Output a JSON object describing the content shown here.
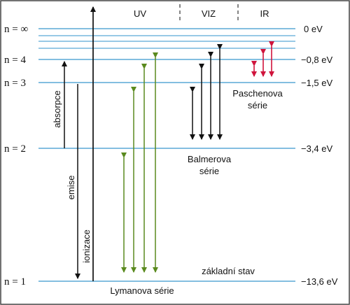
{
  "regions": {
    "uv": "UV",
    "viz": "VIZ",
    "ir": "IR"
  },
  "levels": [
    {
      "n_label": "n = ∞",
      "energy": "0 eV"
    },
    {
      "n_label": "n = 4",
      "energy": "−0,8 eV"
    },
    {
      "n_label": "n = 3",
      "energy": "−1,5 eV"
    },
    {
      "n_label": "n = 2",
      "energy": "−3,4 eV"
    },
    {
      "n_label": "n = 1",
      "energy": "−13,6 eV"
    }
  ],
  "labels": {
    "absorption": "absorpce",
    "emission": "emise",
    "ionization": "ionizace",
    "ground_state": "základní stav",
    "lyman": "Lymanova série",
    "balmer_line1": "Balmerova",
    "balmer_line2": "série",
    "paschen_line1": "Paschenova",
    "paschen_line2": "série"
  },
  "colors": {
    "level_line": "#5aa9d6",
    "lyman": "#5a8a1e",
    "balmer": "#111111",
    "paschen": "#d0143c",
    "generic": "#111111"
  }
}
